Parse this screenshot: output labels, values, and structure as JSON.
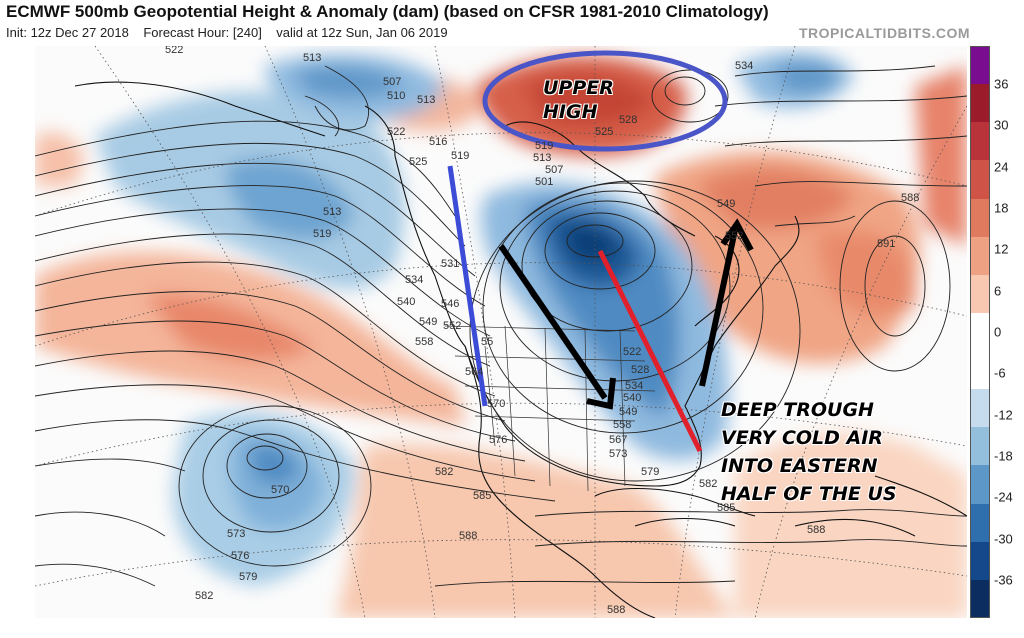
{
  "header": {
    "title": "ECMWF 500mb Geopotential Height & Anomaly (dam) (based on CFSR 1981-2010 Climatology)",
    "init": "Init: 12z Dec 27 2018",
    "forecast_hour": "Forecast Hour: [240]",
    "valid": "valid at 12z Sun, Jan 06 2019",
    "brand": "TROPICALTIDBITS.COM"
  },
  "colorbar": {
    "ticks": [
      "36",
      "30",
      "24",
      "18",
      "12",
      "6",
      "0",
      "-6",
      "-12",
      "-18",
      "-24",
      "-30",
      "-36"
    ],
    "colors": [
      "#7a0c8f",
      "#9b1b2a",
      "#b8333a",
      "#cf5447",
      "#e07a5f",
      "#eea283",
      "#f8c9b0",
      "#ffffff",
      "#ffffff",
      "#c4dced",
      "#93bfdc",
      "#5c97c7",
      "#2f6fae",
      "#15488a",
      "#0b2d60"
    ]
  },
  "annotations": {
    "upper_high": [
      "UPPER",
      "HIGH"
    ],
    "deep_trough": [
      "DEEP TROUGH",
      "VERY COLD AIR",
      "INTO EASTERN",
      "HALF OF THE US"
    ]
  },
  "contour_labels": [
    "522",
    "513",
    "507",
    "510",
    "513",
    "522",
    "516",
    "525",
    "519",
    "534",
    "528",
    "525",
    "519",
    "513",
    "507",
    "501",
    "549",
    "552",
    "588",
    "591",
    "513",
    "519",
    "534",
    "540",
    "549",
    "552",
    "546",
    "531",
    "55",
    "558",
    "564",
    "570",
    "576",
    "582",
    "585",
    "588",
    "570",
    "573",
    "576",
    "579",
    "582",
    "522",
    "528",
    "534",
    "540",
    "549",
    "558",
    "567",
    "573",
    "579",
    "582",
    "585",
    "588",
    "588"
  ]
}
